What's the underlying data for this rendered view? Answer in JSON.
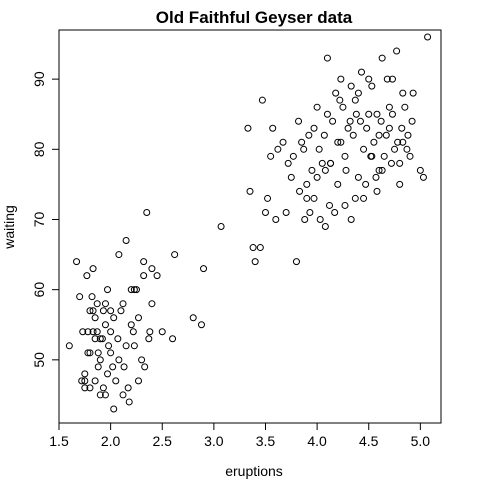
{
  "chart_data": {
    "type": "scatter",
    "title": "Old Faithful Geyser data",
    "xlabel": "eruptions",
    "ylabel": "waiting",
    "xlim": [
      1.5,
      5.2
    ],
    "ylim": [
      41,
      97
    ],
    "xticks": [
      "1.5",
      "2.0",
      "2.5",
      "3.0",
      "3.5",
      "4.0",
      "4.5",
      "5.0"
    ],
    "yticks": [
      "50",
      "60",
      "70",
      "80",
      "90"
    ],
    "grid": false,
    "legend": "none",
    "series": [
      {
        "marker": "open-circle",
        "color": "#000000",
        "points": [
          [
            1.6,
            52
          ],
          [
            1.67,
            64
          ],
          [
            1.7,
            59
          ],
          [
            1.73,
            54
          ],
          [
            1.75,
            48
          ],
          [
            1.75,
            47
          ],
          [
            1.77,
            62
          ],
          [
            1.78,
            54
          ],
          [
            1.8,
            46
          ],
          [
            1.8,
            51
          ],
          [
            1.82,
            59
          ],
          [
            1.83,
            63
          ],
          [
            1.83,
            54
          ],
          [
            1.85,
            47
          ],
          [
            1.85,
            56
          ],
          [
            1.87,
            58
          ],
          [
            1.87,
            54
          ],
          [
            1.88,
            49
          ],
          [
            1.9,
            45
          ],
          [
            1.9,
            50
          ],
          [
            1.92,
            53
          ],
          [
            1.93,
            57
          ],
          [
            1.95,
            45
          ],
          [
            1.97,
            60
          ],
          [
            1.98,
            52
          ],
          [
            2.0,
            57
          ],
          [
            2.0,
            51
          ],
          [
            2.02,
            49
          ],
          [
            2.03,
            56
          ],
          [
            2.05,
            47
          ],
          [
            2.07,
            53
          ],
          [
            2.08,
            65
          ],
          [
            2.1,
            57
          ],
          [
            2.12,
            58
          ],
          [
            2.13,
            49
          ],
          [
            2.15,
            67
          ],
          [
            2.17,
            46
          ],
          [
            2.2,
            60
          ],
          [
            2.22,
            54
          ],
          [
            2.23,
            52
          ],
          [
            2.25,
            60
          ],
          [
            2.27,
            56
          ],
          [
            2.3,
            50
          ],
          [
            2.32,
            64
          ],
          [
            2.33,
            49
          ],
          [
            2.35,
            71
          ],
          [
            2.37,
            53
          ],
          [
            2.38,
            54
          ],
          [
            2.4,
            63
          ],
          [
            2.45,
            62
          ],
          [
            2.5,
            54
          ],
          [
            2.6,
            53
          ],
          [
            2.62,
            65
          ],
          [
            2.8,
            56
          ],
          [
            2.88,
            55
          ],
          [
            2.9,
            63
          ],
          [
            3.07,
            69
          ],
          [
            1.72,
            47
          ],
          [
            1.88,
            51
          ],
          [
            1.95,
            55
          ],
          [
            2.0,
            54
          ],
          [
            2.03,
            43
          ],
          [
            2.27,
            47
          ],
          [
            1.8,
            57
          ],
          [
            1.95,
            58
          ],
          [
            2.23,
            60
          ],
          [
            1.78,
            51
          ],
          [
            1.9,
            53
          ],
          [
            2.12,
            45
          ],
          [
            2.32,
            62
          ],
          [
            1.85,
            53
          ],
          [
            2.08,
            50
          ],
          [
            1.97,
            48
          ],
          [
            1.93,
            46
          ],
          [
            2.15,
            52
          ],
          [
            2.18,
            44
          ],
          [
            2.4,
            58
          ],
          [
            1.75,
            46
          ],
          [
            1.83,
            57
          ],
          [
            2.2,
            55
          ],
          [
            3.33,
            83
          ],
          [
            3.35,
            74
          ],
          [
            3.38,
            66
          ],
          [
            3.4,
            64
          ],
          [
            3.45,
            66
          ],
          [
            3.47,
            87
          ],
          [
            3.5,
            71
          ],
          [
            3.52,
            73
          ],
          [
            3.55,
            79
          ],
          [
            3.57,
            83
          ],
          [
            3.6,
            70
          ],
          [
            3.62,
            80
          ],
          [
            3.67,
            81
          ],
          [
            3.7,
            71
          ],
          [
            3.72,
            78
          ],
          [
            3.75,
            76
          ],
          [
            3.77,
            79
          ],
          [
            3.8,
            64
          ],
          [
            3.82,
            84
          ],
          [
            3.83,
            74
          ],
          [
            3.85,
            81
          ],
          [
            3.87,
            80
          ],
          [
            3.88,
            70
          ],
          [
            3.9,
            75
          ],
          [
            3.92,
            82
          ],
          [
            3.93,
            71
          ],
          [
            3.95,
            77
          ],
          [
            3.97,
            73
          ],
          [
            4.0,
            76
          ],
          [
            4.02,
            80
          ],
          [
            4.03,
            70
          ],
          [
            4.05,
            78
          ],
          [
            4.07,
            82
          ],
          [
            4.08,
            69
          ],
          [
            4.1,
            85
          ],
          [
            4.12,
            72
          ],
          [
            4.13,
            78
          ],
          [
            4.15,
            84
          ],
          [
            4.17,
            71
          ],
          [
            4.18,
            88
          ],
          [
            4.2,
            75
          ],
          [
            4.22,
            87
          ],
          [
            4.23,
            81
          ],
          [
            4.25,
            86
          ],
          [
            4.27,
            79
          ],
          [
            4.28,
            77
          ],
          [
            4.3,
            83
          ],
          [
            4.32,
            84
          ],
          [
            4.33,
            89
          ],
          [
            4.35,
            82
          ],
          [
            4.37,
            73
          ],
          [
            4.38,
            85
          ],
          [
            4.4,
            88
          ],
          [
            4.42,
            84
          ],
          [
            4.43,
            91
          ],
          [
            4.45,
            80
          ],
          [
            4.47,
            75
          ],
          [
            4.48,
            83
          ],
          [
            4.5,
            85
          ],
          [
            4.52,
            79
          ],
          [
            4.53,
            89
          ],
          [
            4.55,
            81
          ],
          [
            4.57,
            76
          ],
          [
            4.58,
            85
          ],
          [
            4.6,
            77
          ],
          [
            4.62,
            84
          ],
          [
            4.63,
            93
          ],
          [
            4.65,
            79
          ],
          [
            4.67,
            82
          ],
          [
            4.68,
            90
          ],
          [
            4.7,
            83
          ],
          [
            4.72,
            78
          ],
          [
            4.73,
            85
          ],
          [
            4.75,
            80
          ],
          [
            4.77,
            94
          ],
          [
            4.78,
            81
          ],
          [
            4.8,
            75
          ],
          [
            4.82,
            83
          ],
          [
            4.83,
            88
          ],
          [
            4.85,
            86
          ],
          [
            4.87,
            80
          ],
          [
            4.88,
            82
          ],
          [
            4.9,
            79
          ],
          [
            4.92,
            84
          ],
          [
            4.93,
            88
          ],
          [
            5.0,
            77
          ],
          [
            5.03,
            76
          ],
          [
            5.07,
            96
          ],
          [
            4.1,
            93
          ],
          [
            4.45,
            73
          ],
          [
            4.5,
            90
          ],
          [
            4.58,
            74
          ],
          [
            4.33,
            70
          ],
          [
            3.97,
            83
          ],
          [
            4.13,
            78
          ],
          [
            4.2,
            81
          ],
          [
            4.27,
            72
          ],
          [
            4.37,
            87
          ],
          [
            4.53,
            79
          ],
          [
            4.63,
            77
          ],
          [
            4.73,
            90
          ],
          [
            4.8,
            78
          ],
          [
            4.0,
            86
          ],
          [
            3.9,
            73
          ],
          [
            4.08,
            77
          ],
          [
            4.23,
            90
          ],
          [
            4.4,
            76
          ],
          [
            4.6,
            82
          ],
          [
            4.7,
            86
          ],
          [
            4.83,
            81
          ]
        ]
      }
    ]
  }
}
